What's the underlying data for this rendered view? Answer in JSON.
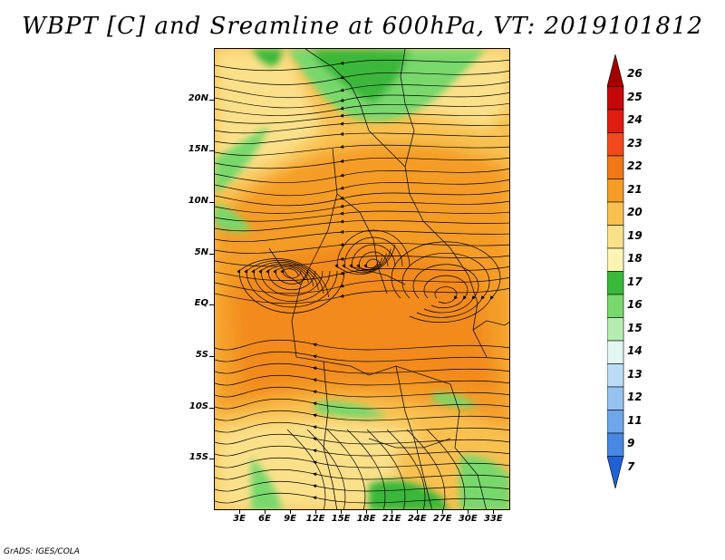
{
  "title": "WBPT [C] and Sreamline at 600hPa, VT: 2019101812",
  "footer": "GrADS: IGES/COLA",
  "map": {
    "variable": "Wet Bulb Potential Temperature",
    "units": "C",
    "level": "600hPa",
    "valid_time": "2019101812",
    "lat_range": [
      -20,
      25
    ],
    "lon_range": [
      0,
      35
    ],
    "lat_ticks": [
      {
        "value": 20,
        "label": "20N"
      },
      {
        "value": 15,
        "label": "15N"
      },
      {
        "value": 10,
        "label": "10N"
      },
      {
        "value": 5,
        "label": "5N"
      },
      {
        "value": 0,
        "label": "EQ"
      },
      {
        "value": -5,
        "label": "5S"
      },
      {
        "value": -10,
        "label": "10S"
      },
      {
        "value": -15,
        "label": "15S"
      }
    ],
    "lon_ticks": [
      {
        "value": 3,
        "label": "3E"
      },
      {
        "value": 6,
        "label": "6E"
      },
      {
        "value": 9,
        "label": "9E"
      },
      {
        "value": 12,
        "label": "12E"
      },
      {
        "value": 15,
        "label": "15E"
      },
      {
        "value": 18,
        "label": "18E"
      },
      {
        "value": 21,
        "label": "21E"
      },
      {
        "value": 24,
        "label": "24E"
      },
      {
        "value": 27,
        "label": "27E"
      },
      {
        "value": 30,
        "label": "30E"
      },
      {
        "value": 33,
        "label": "33E"
      }
    ]
  },
  "colorbar": {
    "levels": [
      {
        "label": "26",
        "color": "#a50000"
      },
      {
        "label": "25",
        "color": "#c40808"
      },
      {
        "label": "24",
        "color": "#e01e10"
      },
      {
        "label": "23",
        "color": "#f04a1c"
      },
      {
        "label": "22",
        "color": "#f07818"
      },
      {
        "label": "21",
        "color": "#f49c26"
      },
      {
        "label": "20",
        "color": "#f8c050"
      },
      {
        "label": "19",
        "color": "#fbe08a"
      },
      {
        "label": "18",
        "color": "#fcf4b4"
      },
      {
        "label": "17",
        "color": "#3ab83a"
      },
      {
        "label": "16",
        "color": "#78d86c"
      },
      {
        "label": "15",
        "color": "#b6ecb0"
      },
      {
        "label": "14",
        "color": "#e2f6f2"
      },
      {
        "label": "13",
        "color": "#bcdcf6"
      },
      {
        "label": "12",
        "color": "#96c2f0"
      },
      {
        "label": "11",
        "color": "#6ea6ea"
      },
      {
        "label": "9",
        "color": "#4688e2"
      },
      {
        "label": "7",
        "color": "#2062d4"
      }
    ]
  }
}
